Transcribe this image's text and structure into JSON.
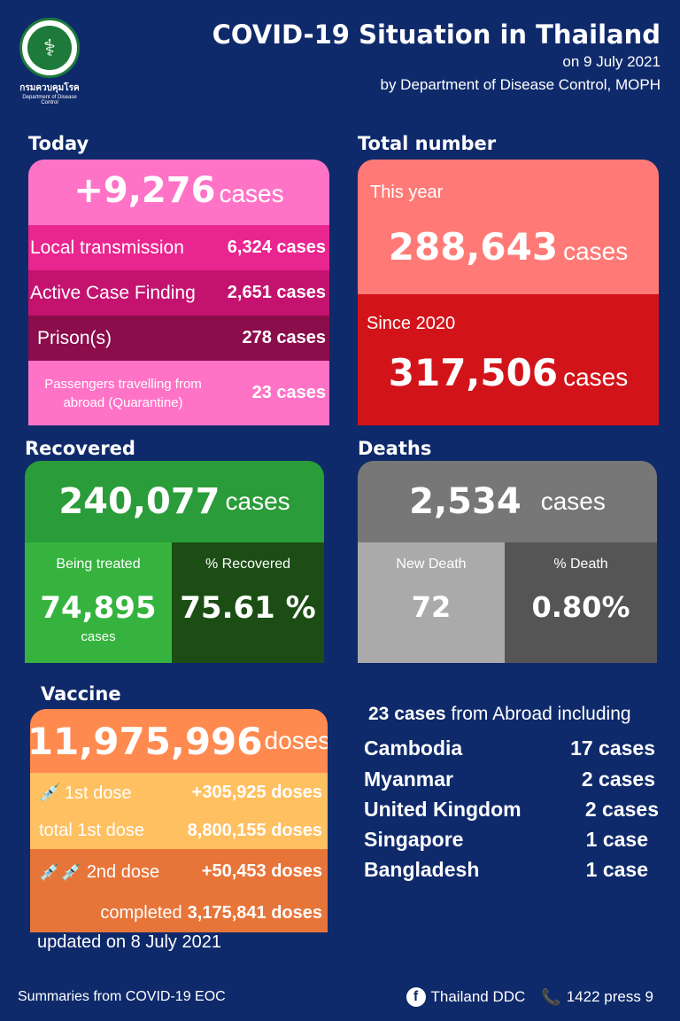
{
  "header": {
    "title": "COVID-19 Situation in Thailand",
    "date": "on 9 July 2021",
    "source": "by Department of Disease Control, MOPH",
    "logo_text": "กรมควบคุมโรค",
    "logo_sub": "Department of Disease Control"
  },
  "today": {
    "label": "Today",
    "total": "+9,276",
    "total_unit": "cases",
    "rows": [
      {
        "label": "Local transmission",
        "value": "6,324 cases",
        "color": "#e9258f"
      },
      {
        "label": "Active Case Finding",
        "value": "2,651 cases",
        "color": "#c4136f"
      },
      {
        "label": "Prison(s)",
        "value": "278 cases",
        "color": "#8b0d4b"
      },
      {
        "label": "Passengers travelling from abroad (Quarantine)",
        "value": "23 cases",
        "color": "#ff73c7"
      }
    ]
  },
  "total": {
    "label": "Total number",
    "this_year_label": "This year",
    "this_year_value": "288,643",
    "this_year_unit": "cases",
    "since_label": "Since 2020",
    "since_value": "317,506",
    "since_unit": "cases"
  },
  "recovered": {
    "label": "Recovered",
    "value": "240,077",
    "unit": "cases",
    "treated_label": "Being treated",
    "treated_value": "74,895",
    "treated_unit": "cases",
    "pct_label": "% Recovered",
    "pct_value": "75.61 %"
  },
  "deaths": {
    "label": "Deaths",
    "value": "2,534",
    "unit": "cases",
    "new_label": "New Death",
    "new_value": "72",
    "pct_label": "% Death",
    "pct_value": "0.80%"
  },
  "vaccine": {
    "label": "Vaccine",
    "total": "11,975,996",
    "total_unit": "doses",
    "dose1_label": "1st dose",
    "dose1_value": "+305,925 doses",
    "total1_label": "total 1st dose",
    "total1_value": "8,800,155 doses",
    "dose2_label": "2nd dose",
    "dose2_value": "+50,453 doses",
    "completed_label": "completed",
    "completed_value": "3,175,841 doses",
    "updated": "updated on 8 July 2021"
  },
  "abroad": {
    "count": "23 cases",
    "suffix": " from Abroad including",
    "countries": [
      {
        "name": "Cambodia",
        "cases": "17 cases"
      },
      {
        "name": "Myanmar",
        "cases": "2 cases"
      },
      {
        "name": "United Kingdom",
        "cases": "2 cases"
      },
      {
        "name": "Singapore",
        "cases": "1 case"
      },
      {
        "name": "Bangladesh",
        "cases": "1 case"
      }
    ]
  },
  "footer": {
    "summary": "Summaries  from COVID-19 EOC",
    "facebook": "Thailand DDC",
    "phone": "1422 press 9"
  }
}
